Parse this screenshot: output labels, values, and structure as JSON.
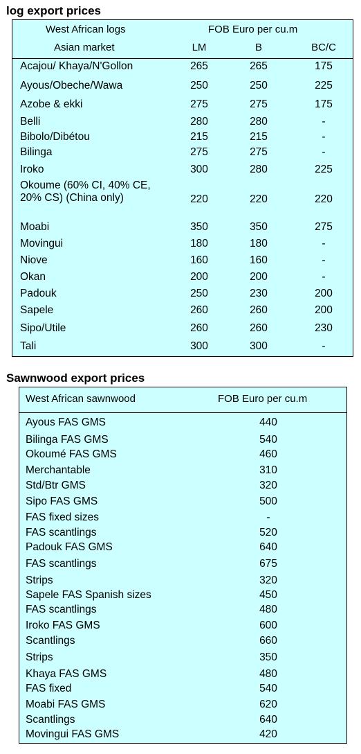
{
  "log_section": {
    "title": "log export prices",
    "header": {
      "group_left": "West African logs",
      "group_right": "FOB Euro per cu.m",
      "sub_left": "Asian market",
      "col_lm": "LM",
      "col_b": "B",
      "col_bcc": "BC/C"
    },
    "rows": [
      {
        "name": "Acajou/ Khaya/N'Gollon",
        "lm": "265",
        "b": "265",
        "bcc": "175"
      },
      {
        "name": "Ayous/Obeche/Wawa",
        "lm": "250",
        "b": "250",
        "bcc": "225"
      },
      {
        "name": "Azobe & ekki",
        "lm": "275",
        "b": "275",
        "bcc": "175"
      },
      {
        "name": "Belli",
        "lm": "280",
        "b": "280",
        "bcc": "-"
      },
      {
        "name": "Bibolo/Dibétou",
        "lm": "215",
        "b": "215",
        "bcc": "-"
      },
      {
        "name": "Bilinga",
        "lm": "275",
        "b": "275",
        "bcc": "-"
      },
      {
        "name": "Iroko",
        "lm": "300",
        "b": "280",
        "bcc": "225"
      },
      {
        "name": "Okoume (60% CI, 40% CE, 20% CS) (China only)",
        "lm": "220",
        "b": "220",
        "bcc": "220"
      },
      {
        "name": "Moabi",
        "lm": "350",
        "b": "350",
        "bcc": "275"
      },
      {
        "name": "Movingui",
        "lm": "180",
        "b": "180",
        "bcc": "-"
      },
      {
        "name": "Niove",
        "lm": "160",
        "b": "160",
        "bcc": "-"
      },
      {
        "name": "Okan",
        "lm": "200",
        "b": "200",
        "bcc": "-"
      },
      {
        "name": "Padouk",
        "lm": "250",
        "b": "230",
        "bcc": "200"
      },
      {
        "name": "Sapele",
        "lm": "260",
        "b": "260",
        "bcc": "200"
      },
      {
        "name": "Sipo/Utile",
        "lm": "260",
        "b": "260",
        "bcc": "230"
      },
      {
        "name": "Tali",
        "lm": "300",
        "b": "300",
        "bcc": "-"
      }
    ]
  },
  "sawn_section": {
    "title": "Sawnwood export prices",
    "header": {
      "col_left": "West African sawnwood",
      "col_right": "FOB Euro per cu.m"
    },
    "rows": [
      {
        "name": "Ayous FAS GMS",
        "price": "440"
      },
      {
        "name": "Bilinga FAS GMS",
        "price": "540"
      },
      {
        "name": "Okoumé FAS GMS",
        "price": "460"
      },
      {
        "name": "Merchantable",
        "price": "310"
      },
      {
        "name": "Std/Btr GMS",
        "price": "320"
      },
      {
        "name": "Sipo FAS GMS",
        "price": "500"
      },
      {
        "name": "FAS fixed sizes",
        "price": "-"
      },
      {
        "name": "FAS scantlings",
        "price": "520"
      },
      {
        "name": "Padouk FAS GMS",
        "price": "640"
      },
      {
        "name": "FAS scantlings",
        "price": "675"
      },
      {
        "name": "Strips",
        "price": "320"
      },
      {
        "name": "Sapele FAS Spanish sizes",
        "price": "450"
      },
      {
        "name": "FAS scantlings",
        "price": "480"
      },
      {
        "name": "Iroko FAS GMS",
        "price": "600"
      },
      {
        "name": "Scantlings",
        "price": "660"
      },
      {
        "name": "Strips",
        "price": "350"
      },
      {
        "name": "Khaya FAS GMS",
        "price": "480"
      },
      {
        "name": "FAS fixed",
        "price": "540"
      },
      {
        "name": "Moabi FAS GMS",
        "price": "620"
      },
      {
        "name": "Scantlings",
        "price": "640"
      },
      {
        "name": "Movingui FAS GMS",
        "price": "420"
      }
    ]
  }
}
